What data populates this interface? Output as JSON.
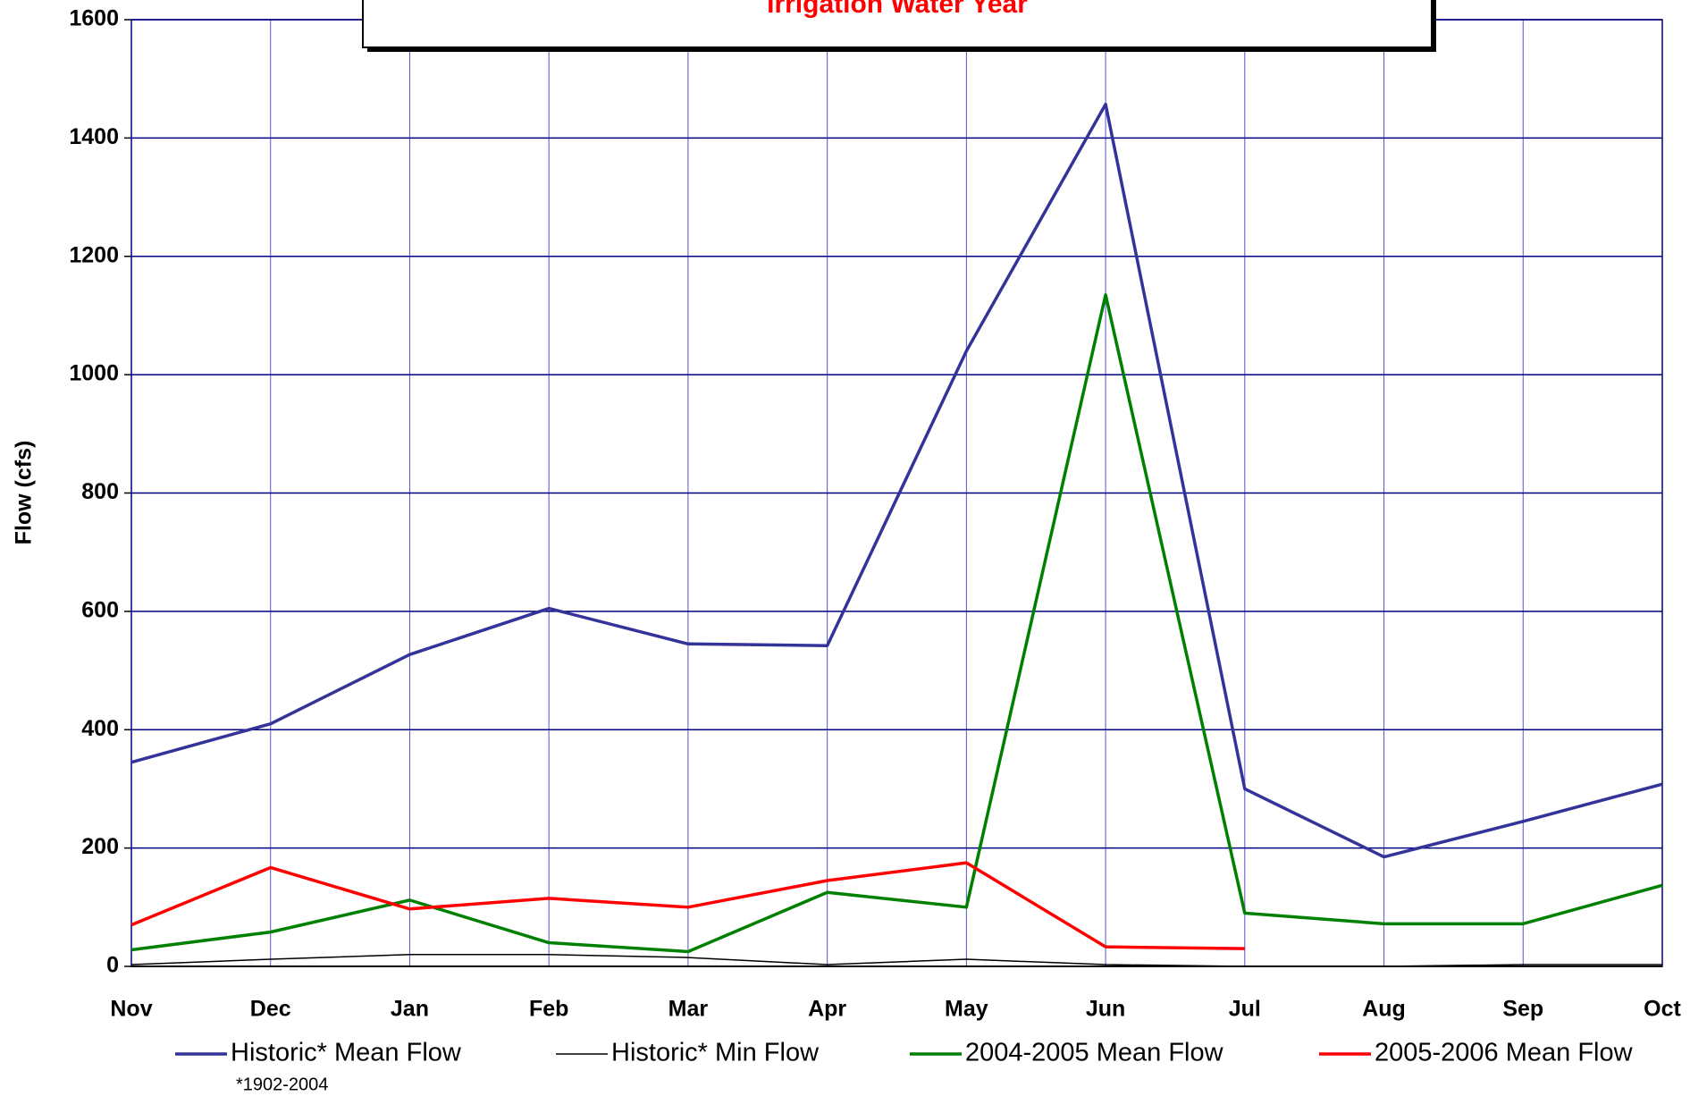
{
  "chart_data": {
    "type": "line",
    "title": "Irrigation Water Year",
    "y_label": "Flow (cfs)",
    "footnote": "*1902-2004",
    "categories": [
      "Nov",
      "Dec",
      "Jan",
      "Feb",
      "Mar",
      "Apr",
      "May",
      "Jun",
      "Jul",
      "Aug",
      "Sep",
      "Oct"
    ],
    "series": [
      {
        "name": "Historic* Mean Flow",
        "color": "#333399",
        "values": [
          345,
          410,
          527,
          605,
          545,
          542,
          1040,
          1457,
          300,
          185,
          245,
          308
        ]
      },
      {
        "name": "Historic* Min Flow",
        "color": "#000000",
        "values": [
          3,
          12,
          20,
          20,
          15,
          3,
          12,
          3,
          0,
          0,
          3,
          3
        ]
      },
      {
        "name": "2004-2005 Mean Flow",
        "color": "#008000",
        "values": [
          28,
          58,
          112,
          40,
          25,
          125,
          100,
          1135,
          90,
          72,
          72,
          137
        ]
      },
      {
        "name": "2005-2006 Mean Flow",
        "color": "#ff0000",
        "values": [
          70,
          167,
          97,
          115,
          100,
          145,
          175,
          33,
          30,
          null,
          null,
          null
        ]
      }
    ],
    "ylim": [
      0,
      1600
    ],
    "yticks": [
      0,
      200,
      400,
      600,
      800,
      1000,
      1200,
      1400,
      1600
    ],
    "grid": true,
    "legend": "bottom"
  }
}
